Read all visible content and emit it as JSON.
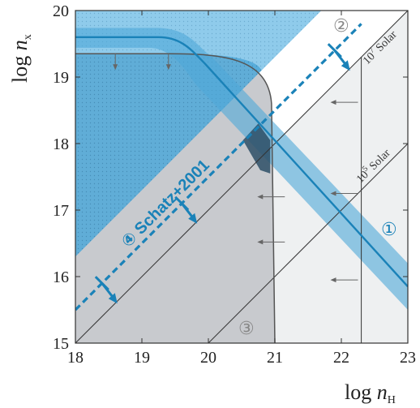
{
  "chart_data": {
    "type": "line",
    "xlim": [
      18,
      23
    ],
    "ylim": [
      15,
      20
    ],
    "x_ticks": [
      18,
      19,
      20,
      21,
      22,
      23
    ],
    "y_ticks": [
      15,
      16,
      17,
      18,
      19,
      20
    ],
    "x_tick_labels": [
      "18",
      "19",
      "20",
      "21",
      "22",
      "23"
    ],
    "y_tick_labels": [
      "15",
      "16",
      "17",
      "18",
      "19",
      "20"
    ],
    "xlabel": {
      "prefix": "log ",
      "var": "n",
      "sub": "H"
    },
    "ylabel": {
      "prefix": "log ",
      "var": "n",
      "sub": "x"
    },
    "grid": false,
    "legend": "none",
    "solar_lines": [
      {
        "label_base": "10",
        "label_exp": "7",
        "label_rest": " Solar",
        "x": [
          18,
          23
        ],
        "y": [
          15,
          20
        ]
      },
      {
        "label_base": "10",
        "label_exp": "5",
        "label_rest": " Solar",
        "x": [
          20,
          23
        ],
        "y": [
          15,
          18
        ]
      }
    ],
    "schatz_line": {
      "label": "④ Schatz+2001",
      "x": [
        18,
        22.3
      ],
      "y": [
        15.5,
        19.8
      ],
      "color": "#1a82b8"
    },
    "region1_line": {
      "label": "①",
      "x": [
        18,
        19.4,
        23
      ],
      "y": [
        19.6,
        19.6,
        15.85
      ],
      "color": "#1a82b8"
    },
    "region2": {
      "label": "②",
      "x_cut": 22.3
    },
    "region3": {
      "label": "③",
      "x": [
        18,
        19.4,
        20.6,
        20.9,
        21.0
      ],
      "y": [
        19.35,
        19.35,
        19.2,
        18.6,
        15.0
      ]
    },
    "colors": {
      "light_blue": "#8fcbeb",
      "mid_blue": "#4fa8d8",
      "dark_blue": "#1a82b8",
      "gray": "#c5c7cb",
      "light_gray": "#eef0f1",
      "dark_gray": "#555555"
    }
  }
}
